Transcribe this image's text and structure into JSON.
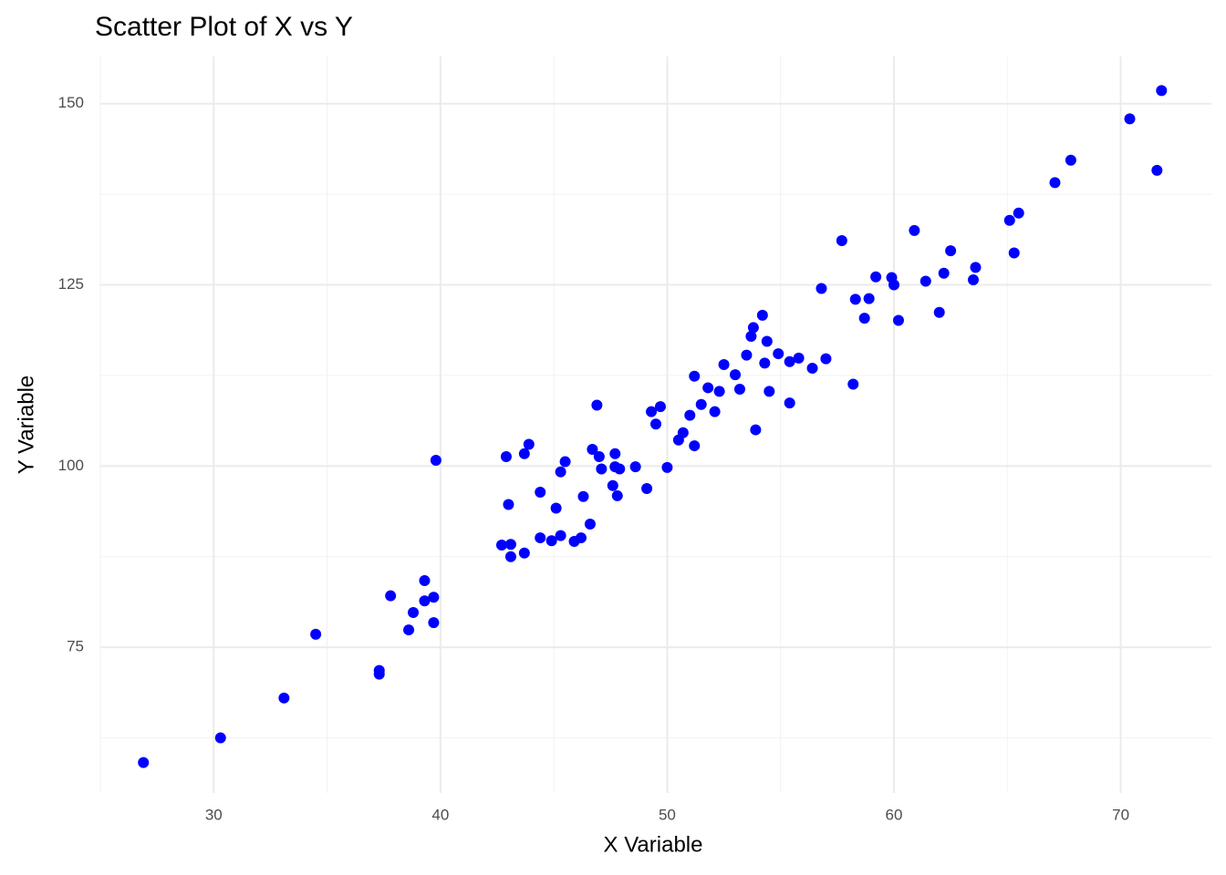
{
  "chart_data": {
    "type": "scatter",
    "title": "Scatter Plot of X vs Y",
    "x_label": "X Variable",
    "y_label": "Y Variable",
    "color": "#0000ff",
    "grid": true,
    "xlim": [
      25,
      74
    ],
    "ylim": [
      54.9,
      156.5
    ],
    "xticks": [
      30,
      40,
      50,
      60,
      70
    ],
    "yticks": [
      75,
      100,
      125,
      150
    ],
    "x": [
      26.9,
      30.3,
      33.1,
      34.5,
      37.3,
      37.3,
      37.8,
      38.6,
      38.8,
      39.3,
      39.3,
      39.7,
      39.7,
      39.8,
      42.7,
      42.9,
      43.0,
      43.1,
      43.1,
      43.7,
      43.7,
      43.9,
      44.4,
      44.4,
      44.9,
      45.1,
      45.3,
      45.3,
      45.5,
      45.9,
      46.2,
      46.3,
      46.6,
      46.7,
      46.9,
      47.0,
      47.1,
      47.6,
      47.7,
      47.7,
      47.8,
      47.9,
      48.6,
      49.1,
      49.3,
      49.5,
      49.7,
      50.0,
      50.5,
      50.7,
      51.0,
      51.2,
      51.2,
      51.5,
      51.8,
      52.1,
      52.3,
      52.5,
      53.0,
      53.2,
      53.5,
      53.7,
      53.8,
      53.9,
      54.2,
      54.3,
      54.4,
      54.5,
      54.9,
      55.4,
      55.4,
      55.8,
      56.4,
      56.8,
      57.0,
      57.7,
      58.2,
      58.3,
      58.7,
      58.9,
      59.2,
      59.9,
      60.0,
      60.2,
      60.9,
      61.4,
      62.0,
      62.2,
      62.5,
      63.5,
      63.6,
      65.1,
      65.3,
      65.5,
      67.1,
      67.8,
      70.4,
      71.6,
      71.8
    ],
    "values": [
      59.1,
      62.5,
      68.0,
      76.8,
      71.8,
      71.3,
      82.1,
      77.4,
      79.8,
      84.2,
      81.4,
      81.9,
      78.4,
      100.8,
      89.1,
      101.3,
      94.7,
      89.2,
      87.5,
      88.0,
      101.7,
      103.0,
      96.4,
      90.1,
      89.7,
      94.2,
      90.4,
      99.2,
      100.6,
      89.6,
      90.1,
      95.8,
      92.0,
      102.3,
      108.4,
      101.3,
      99.6,
      97.3,
      101.7,
      99.9,
      95.9,
      99.6,
      99.9,
      96.9,
      107.5,
      105.8,
      108.2,
      99.8,
      103.6,
      104.6,
      107.0,
      112.4,
      102.8,
      108.5,
      110.8,
      107.5,
      110.3,
      114.0,
      112.6,
      110.6,
      115.3,
      117.9,
      119.1,
      105.0,
      120.8,
      114.2,
      117.2,
      110.3,
      115.5,
      114.4,
      108.7,
      114.9,
      113.5,
      124.5,
      114.8,
      131.1,
      111.3,
      123.0,
      120.4,
      123.1,
      126.1,
      126.0,
      125.0,
      120.1,
      132.5,
      125.5,
      121.2,
      126.6,
      129.7,
      125.7,
      127.4,
      133.9,
      129.4,
      134.9,
      139.1,
      142.2,
      147.9,
      140.8,
      151.8
    ]
  }
}
